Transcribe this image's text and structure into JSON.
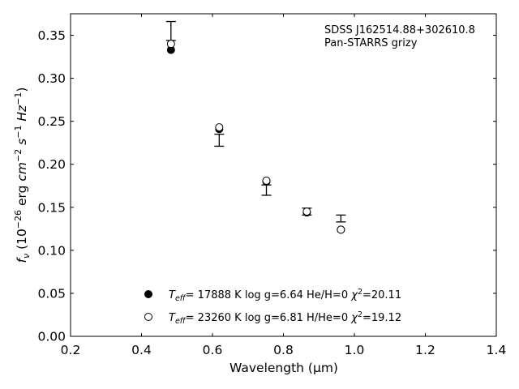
{
  "chart_data": {
    "type": "scatter",
    "xlabel": "Wavelength (μm)",
    "ylabel_parts": [
      "f",
      "ν",
      " (10",
      "−26",
      " erg ",
      "cm",
      "−2",
      " ",
      "s",
      "−1",
      " ",
      "Hz",
      "−1",
      ")"
    ],
    "xlim": [
      0.2,
      1.4
    ],
    "ylim": [
      0.0,
      0.375
    ],
    "xticks": [
      0.2,
      0.4,
      0.6,
      0.8,
      1.0,
      1.2,
      1.4
    ],
    "xtick_labels": [
      "0.2",
      "0.4",
      "0.6",
      "0.8",
      "1.0",
      "1.2",
      "1.4"
    ],
    "yticks": [
      0.0,
      0.05,
      0.1,
      0.15,
      0.2,
      0.25,
      0.3,
      0.35
    ],
    "ytick_labels": [
      "0.00",
      "0.05",
      "0.10",
      "0.15",
      "0.20",
      "0.25",
      "0.30",
      "0.35"
    ],
    "grid": false,
    "annotation": [
      "SDSS J162514.88+302610.8",
      "Pan-STARRS grizy"
    ],
    "observed": {
      "x": [
        0.483,
        0.619,
        0.752,
        0.866,
        0.962
      ],
      "y": [
        0.355,
        0.228,
        0.17,
        0.145,
        0.137
      ],
      "err": [
        0.011,
        0.007,
        0.006,
        0.004,
        0.004
      ]
    },
    "series": [
      {
        "marker": "filled-circle",
        "legend": [
          "T",
          "eff",
          "= 17888 K  log g=6.64  He/H=0  ",
          "χ",
          "2",
          "=20.11"
        ],
        "x": [
          0.483,
          0.619,
          0.752,
          0.866,
          0.962
        ],
        "y": [
          0.333,
          0.241,
          0.18,
          0.144,
          0.124
        ]
      },
      {
        "marker": "open-circle",
        "legend": [
          "T",
          "eff",
          "= 23260 K  log g=6.81  H/He=0  ",
          "χ",
          "2",
          "=19.12"
        ],
        "x": [
          0.483,
          0.619,
          0.752,
          0.866,
          0.962
        ],
        "y": [
          0.34,
          0.243,
          0.181,
          0.145,
          0.124
        ]
      }
    ],
    "colors": {
      "axis": "#000000",
      "marker": "#000000",
      "background": "#ffffff"
    }
  }
}
